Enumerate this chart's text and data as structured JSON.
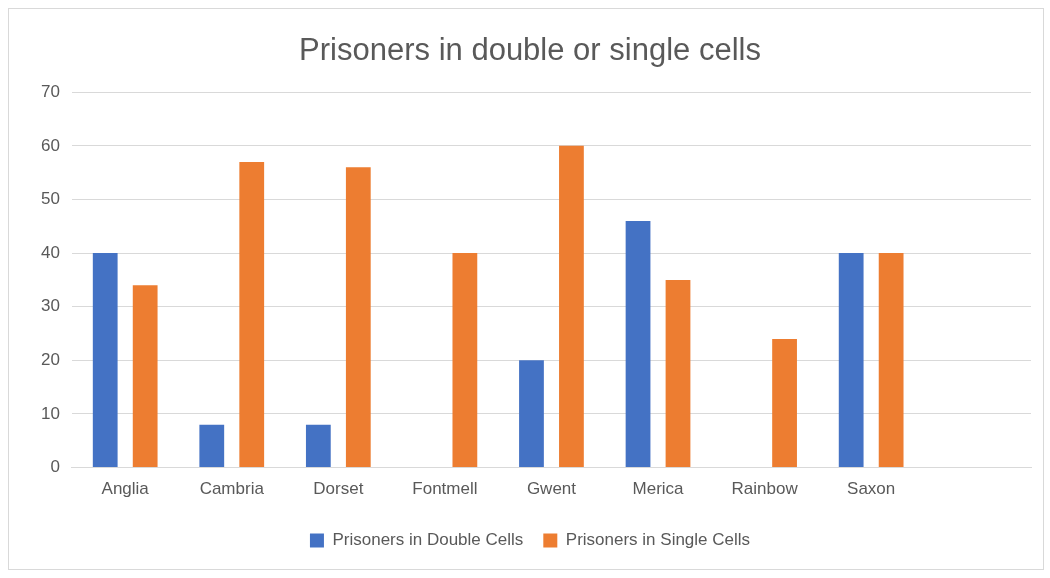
{
  "chart_data": {
    "type": "bar",
    "title": "Prisoners in double or single cells",
    "categories": [
      "Anglia",
      "Cambria",
      "Dorset",
      "Fontmell",
      "Gwent",
      "Merica",
      "Rainbow",
      "Saxon",
      null
    ],
    "series": [
      {
        "name": "Prisoners in Double Cells",
        "color": "#4472c4",
        "values": [
          40,
          8,
          8,
          null,
          20,
          46,
          null,
          40,
          null
        ]
      },
      {
        "name": "Prisoners in Single Cells",
        "color": "#ed7d31",
        "values": [
          34,
          57,
          56,
          40,
          60,
          35,
          24,
          40,
          null
        ]
      }
    ],
    "ylim": [
      0,
      70
    ],
    "yticks": [
      0,
      10,
      20,
      30,
      40,
      50,
      60,
      70
    ],
    "grid": "y",
    "legend": "bottom"
  }
}
